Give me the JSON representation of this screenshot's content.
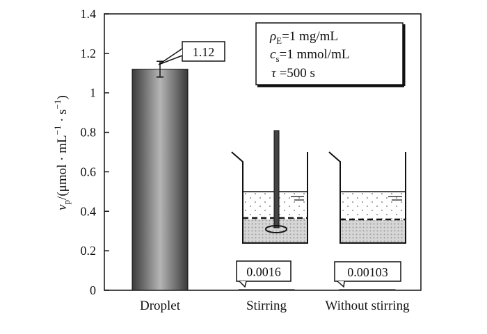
{
  "chart_data": {
    "type": "bar",
    "categories": [
      "Droplet",
      "Stirring",
      "Without stirring"
    ],
    "values": [
      1.12,
      0.0016,
      0.00103
    ],
    "error": [
      0.04,
      0,
      0
    ],
    "data_labels": [
      "1.12",
      "0.0016",
      "0.00103"
    ],
    "ylim": [
      0,
      1.4
    ],
    "yticks": [
      0,
      0.2,
      0.4,
      0.6,
      0.8,
      1,
      1.2,
      1.4
    ],
    "ytick_labels": [
      "0",
      "0.2",
      "0.4",
      "0.6",
      "0.8",
      "1",
      "1.2",
      "1.4"
    ],
    "ylabel": {
      "symbol": "v",
      "symbol_sub": "p",
      "unit": "/(μmol · mL",
      "sup1": "−1",
      "mid": " · s",
      "sup2": "−1",
      "close": ")"
    },
    "conditions": [
      {
        "symbol": "ρ",
        "sub": "E",
        "text": "=1 mg/mL"
      },
      {
        "symbol": "c",
        "sub": "s",
        "text": "=1 mmol/mL"
      },
      {
        "symbol": "τ",
        "sub": "",
        "text": " =500 s"
      }
    ],
    "grid": false,
    "bar_color": "#6e6e6e"
  }
}
